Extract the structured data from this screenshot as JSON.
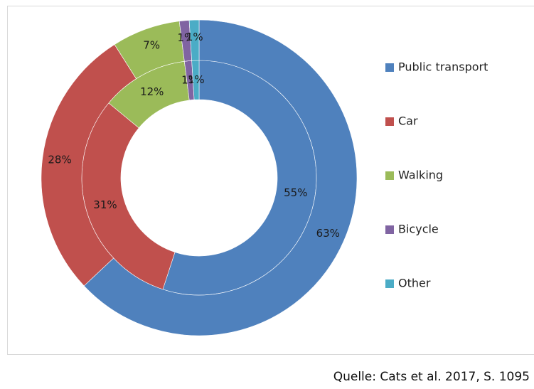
{
  "chart_data": {
    "type": "double-donut",
    "categories": [
      "Public transport",
      "Car",
      "Walking",
      "Bicycle",
      "Other"
    ],
    "colors": [
      "#4f81bd",
      "#c0504d",
      "#9bbb59",
      "#8064a2",
      "#4bacc6"
    ],
    "series": [
      {
        "values": [
          55,
          31,
          12,
          1,
          1
        ],
        "value_labels": [
          "55%",
          "31%",
          "12%",
          "1%",
          "1%"
        ]
      },
      {
        "values": [
          63,
          28,
          7,
          1,
          1
        ],
        "value_labels": [
          "63%",
          "28%",
          "7%",
          "1%",
          "1%"
        ]
      }
    ],
    "source": "Quelle: Cats et al. 2017, S. 1095"
  }
}
